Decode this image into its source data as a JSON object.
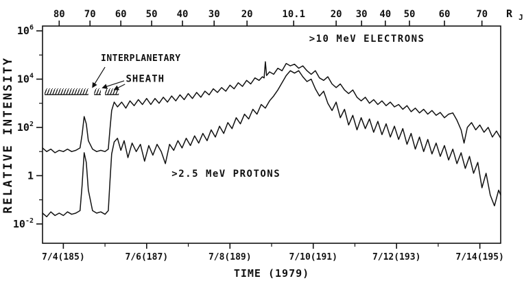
{
  "colors": {
    "ink": "#111111",
    "background": "#ffffff"
  },
  "chart_data": {
    "type": "line",
    "x_axis": {
      "label": "TIME (1979)",
      "range_day": [
        184.5,
        195.5
      ],
      "major_ticks": [
        {
          "day": 185,
          "label": "7/4(185)"
        },
        {
          "day": 187,
          "label": "7/6(187)"
        },
        {
          "day": 189,
          "label": "7/8(189)"
        },
        {
          "day": 191,
          "label": "7/10(191)"
        },
        {
          "day": 193,
          "label": "7/12(193)"
        },
        {
          "day": 195,
          "label": "7/14(195)"
        }
      ],
      "minor_ticks_day": [
        186,
        188,
        190,
        192,
        194
      ]
    },
    "y_axis": {
      "label": "RELATIVE INTENSITY",
      "scale": "log10",
      "range_log10": [
        -2.8,
        6.2
      ],
      "major_ticks": [
        {
          "log10": 6,
          "base": "10",
          "exp": "6"
        },
        {
          "log10": 4,
          "base": "10",
          "exp": "4"
        },
        {
          "log10": 2,
          "base": "10",
          "exp": "2"
        },
        {
          "log10": 0,
          "base": "1",
          "exp": ""
        },
        {
          "log10": -2,
          "base": "10",
          "exp": "-2"
        }
      ],
      "minor_ticks_log10": [
        5,
        3,
        1,
        -1
      ]
    },
    "top_axis": {
      "label_base": "R",
      "label_sub": "J",
      "ticks": [
        {
          "day": 184.9,
          "label": "80"
        },
        {
          "day": 185.64,
          "label": "70"
        },
        {
          "day": 186.38,
          "label": "60"
        },
        {
          "day": 187.12,
          "label": "50"
        },
        {
          "day": 187.86,
          "label": "40"
        },
        {
          "day": 188.62,
          "label": "30"
        },
        {
          "day": 189.41,
          "label": "20"
        },
        {
          "day": 190.53,
          "label": "10.1"
        },
        {
          "day": 191.55,
          "label": "20"
        },
        {
          "day": 192.16,
          "label": "30"
        },
        {
          "day": 192.73,
          "label": "40"
        },
        {
          "day": 193.31,
          "label": "50"
        },
        {
          "day": 194.15,
          "label": "60"
        },
        {
          "day": 195.05,
          "label": "70"
        }
      ]
    },
    "series": [
      {
        "name": ">10 MeV ELECTRONS",
        "points": [
          [
            184.5,
            1.15
          ],
          [
            184.6,
            1.0
          ],
          [
            184.7,
            1.1
          ],
          [
            184.8,
            0.95
          ],
          [
            184.9,
            1.05
          ],
          [
            185.0,
            1.0
          ],
          [
            185.1,
            1.1
          ],
          [
            185.2,
            1.0
          ],
          [
            185.3,
            1.05
          ],
          [
            185.4,
            1.15
          ],
          [
            185.45,
            1.7
          ],
          [
            185.5,
            2.45
          ],
          [
            185.55,
            2.15
          ],
          [
            185.6,
            1.45
          ],
          [
            185.7,
            1.1
          ],
          [
            185.8,
            1.0
          ],
          [
            185.9,
            1.05
          ],
          [
            186.0,
            1.0
          ],
          [
            186.08,
            1.1
          ],
          [
            186.12,
            1.95
          ],
          [
            186.16,
            2.7
          ],
          [
            186.22,
            3.05
          ],
          [
            186.3,
            2.85
          ],
          [
            186.4,
            3.05
          ],
          [
            186.5,
            2.8
          ],
          [
            186.6,
            3.1
          ],
          [
            186.7,
            2.9
          ],
          [
            186.8,
            3.15
          ],
          [
            186.9,
            2.95
          ],
          [
            187.0,
            3.2
          ],
          [
            187.1,
            2.95
          ],
          [
            187.2,
            3.2
          ],
          [
            187.3,
            3.0
          ],
          [
            187.4,
            3.25
          ],
          [
            187.5,
            3.05
          ],
          [
            187.6,
            3.3
          ],
          [
            187.7,
            3.1
          ],
          [
            187.8,
            3.35
          ],
          [
            187.9,
            3.15
          ],
          [
            188.0,
            3.4
          ],
          [
            188.1,
            3.2
          ],
          [
            188.2,
            3.45
          ],
          [
            188.3,
            3.25
          ],
          [
            188.4,
            3.5
          ],
          [
            188.5,
            3.35
          ],
          [
            188.6,
            3.6
          ],
          [
            188.7,
            3.45
          ],
          [
            188.8,
            3.65
          ],
          [
            188.9,
            3.5
          ],
          [
            189.0,
            3.75
          ],
          [
            189.1,
            3.6
          ],
          [
            189.2,
            3.85
          ],
          [
            189.3,
            3.7
          ],
          [
            189.4,
            3.95
          ],
          [
            189.5,
            3.8
          ],
          [
            189.6,
            4.05
          ],
          [
            189.7,
            3.95
          ],
          [
            189.78,
            4.1
          ],
          [
            189.82,
            4.05
          ],
          [
            189.85,
            4.72
          ],
          [
            189.88,
            4.15
          ],
          [
            189.95,
            4.3
          ],
          [
            190.05,
            4.2
          ],
          [
            190.15,
            4.45
          ],
          [
            190.25,
            4.35
          ],
          [
            190.35,
            4.65
          ],
          [
            190.45,
            4.55
          ],
          [
            190.55,
            4.62
          ],
          [
            190.65,
            4.45
          ],
          [
            190.75,
            4.55
          ],
          [
            190.85,
            4.35
          ],
          [
            190.95,
            4.2
          ],
          [
            191.05,
            4.35
          ],
          [
            191.15,
            4.05
          ],
          [
            191.25,
            3.95
          ],
          [
            191.35,
            4.1
          ],
          [
            191.45,
            3.8
          ],
          [
            191.55,
            3.65
          ],
          [
            191.65,
            3.8
          ],
          [
            191.75,
            3.55
          ],
          [
            191.85,
            3.4
          ],
          [
            191.95,
            3.55
          ],
          [
            192.05,
            3.25
          ],
          [
            192.15,
            3.1
          ],
          [
            192.25,
            3.25
          ],
          [
            192.35,
            3.0
          ],
          [
            192.45,
            3.15
          ],
          [
            192.55,
            2.95
          ],
          [
            192.65,
            3.1
          ],
          [
            192.75,
            2.9
          ],
          [
            192.85,
            3.05
          ],
          [
            192.95,
            2.85
          ],
          [
            193.05,
            2.95
          ],
          [
            193.15,
            2.75
          ],
          [
            193.25,
            2.9
          ],
          [
            193.35,
            2.65
          ],
          [
            193.45,
            2.8
          ],
          [
            193.55,
            2.6
          ],
          [
            193.65,
            2.75
          ],
          [
            193.75,
            2.55
          ],
          [
            193.85,
            2.7
          ],
          [
            193.95,
            2.5
          ],
          [
            194.05,
            2.62
          ],
          [
            194.15,
            2.4
          ],
          [
            194.25,
            2.55
          ],
          [
            194.35,
            2.6
          ],
          [
            194.45,
            2.3
          ],
          [
            194.55,
            1.9
          ],
          [
            194.62,
            1.35
          ],
          [
            194.7,
            2.0
          ],
          [
            194.8,
            2.2
          ],
          [
            194.9,
            1.9
          ],
          [
            195.0,
            2.1
          ],
          [
            195.1,
            1.8
          ],
          [
            195.2,
            2.0
          ],
          [
            195.3,
            1.6
          ],
          [
            195.4,
            1.85
          ],
          [
            195.5,
            1.55
          ]
        ]
      },
      {
        "name": ">2.5 MeV PROTONS",
        "points": [
          [
            184.5,
            -1.55
          ],
          [
            184.6,
            -1.7
          ],
          [
            184.7,
            -1.5
          ],
          [
            184.8,
            -1.65
          ],
          [
            184.9,
            -1.55
          ],
          [
            185.0,
            -1.65
          ],
          [
            185.1,
            -1.5
          ],
          [
            185.2,
            -1.6
          ],
          [
            185.3,
            -1.55
          ],
          [
            185.4,
            -1.45
          ],
          [
            185.45,
            -0.4
          ],
          [
            185.5,
            0.95
          ],
          [
            185.55,
            0.55
          ],
          [
            185.6,
            -0.6
          ],
          [
            185.7,
            -1.45
          ],
          [
            185.8,
            -1.55
          ],
          [
            185.9,
            -1.5
          ],
          [
            186.0,
            -1.6
          ],
          [
            186.08,
            -1.45
          ],
          [
            186.12,
            -0.2
          ],
          [
            186.16,
            0.9
          ],
          [
            186.22,
            1.4
          ],
          [
            186.3,
            1.55
          ],
          [
            186.38,
            1.05
          ],
          [
            186.46,
            1.45
          ],
          [
            186.55,
            0.75
          ],
          [
            186.65,
            1.35
          ],
          [
            186.75,
            1.0
          ],
          [
            186.85,
            1.3
          ],
          [
            186.95,
            0.6
          ],
          [
            187.05,
            1.25
          ],
          [
            187.15,
            0.85
          ],
          [
            187.25,
            1.3
          ],
          [
            187.35,
            1.0
          ],
          [
            187.45,
            0.5
          ],
          [
            187.55,
            1.3
          ],
          [
            187.65,
            1.05
          ],
          [
            187.75,
            1.45
          ],
          [
            187.85,
            1.15
          ],
          [
            187.95,
            1.55
          ],
          [
            188.05,
            1.25
          ],
          [
            188.15,
            1.65
          ],
          [
            188.25,
            1.35
          ],
          [
            188.35,
            1.75
          ],
          [
            188.45,
            1.45
          ],
          [
            188.55,
            1.9
          ],
          [
            188.65,
            1.6
          ],
          [
            188.75,
            2.05
          ],
          [
            188.85,
            1.75
          ],
          [
            188.95,
            2.2
          ],
          [
            189.05,
            1.95
          ],
          [
            189.15,
            2.4
          ],
          [
            189.25,
            2.15
          ],
          [
            189.35,
            2.55
          ],
          [
            189.45,
            2.35
          ],
          [
            189.55,
            2.75
          ],
          [
            189.65,
            2.55
          ],
          [
            189.75,
            2.95
          ],
          [
            189.85,
            2.8
          ],
          [
            189.95,
            3.1
          ],
          [
            190.05,
            3.3
          ],
          [
            190.15,
            3.55
          ],
          [
            190.25,
            3.85
          ],
          [
            190.35,
            4.15
          ],
          [
            190.45,
            4.35
          ],
          [
            190.55,
            4.25
          ],
          [
            190.65,
            4.35
          ],
          [
            190.75,
            4.1
          ],
          [
            190.85,
            3.9
          ],
          [
            190.95,
            4.0
          ],
          [
            191.05,
            3.6
          ],
          [
            191.15,
            3.3
          ],
          [
            191.25,
            3.5
          ],
          [
            191.35,
            3.0
          ],
          [
            191.45,
            2.7
          ],
          [
            191.55,
            3.05
          ],
          [
            191.65,
            2.4
          ],
          [
            191.75,
            2.75
          ],
          [
            191.85,
            2.1
          ],
          [
            191.95,
            2.5
          ],
          [
            192.05,
            1.9
          ],
          [
            192.15,
            2.4
          ],
          [
            192.25,
            1.95
          ],
          [
            192.35,
            2.35
          ],
          [
            192.45,
            1.8
          ],
          [
            192.55,
            2.25
          ],
          [
            192.65,
            1.7
          ],
          [
            192.75,
            2.15
          ],
          [
            192.85,
            1.6
          ],
          [
            192.95,
            2.05
          ],
          [
            193.05,
            1.5
          ],
          [
            193.15,
            1.95
          ],
          [
            193.25,
            1.3
          ],
          [
            193.35,
            1.75
          ],
          [
            193.45,
            1.1
          ],
          [
            193.55,
            1.6
          ],
          [
            193.65,
            1.0
          ],
          [
            193.75,
            1.5
          ],
          [
            193.85,
            0.9
          ],
          [
            193.95,
            1.35
          ],
          [
            194.05,
            0.8
          ],
          [
            194.15,
            1.25
          ],
          [
            194.25,
            0.65
          ],
          [
            194.35,
            1.1
          ],
          [
            194.45,
            0.5
          ],
          [
            194.55,
            0.95
          ],
          [
            194.65,
            0.3
          ],
          [
            194.75,
            0.8
          ],
          [
            194.85,
            0.1
          ],
          [
            194.95,
            0.55
          ],
          [
            195.05,
            -0.5
          ],
          [
            195.15,
            0.1
          ],
          [
            195.25,
            -0.8
          ],
          [
            195.35,
            -1.25
          ],
          [
            195.45,
            -0.6
          ],
          [
            195.5,
            -0.8
          ]
        ]
      }
    ],
    "annotations": {
      "electrons_label_pos": {
        "day": 190.9,
        "log10": 5.55
      },
      "protons_label_pos": {
        "day": 187.6,
        "log10": -0.05
      },
      "interplanetary": {
        "text": "INTERPLANETARY",
        "day": 185.9,
        "log10": 4.75
      },
      "sheath": {
        "text": "SHEATH",
        "day": 186.5,
        "log10": 3.88
      },
      "arrows": [
        {
          "from_day": 186.0,
          "from_log10": 4.5,
          "to_day": 185.7,
          "to_log10": 3.66
        },
        {
          "from_day": 186.46,
          "from_log10": 3.93,
          "to_day": 185.94,
          "to_log10": 3.64
        },
        {
          "from_day": 186.48,
          "from_log10": 3.79,
          "to_day": 186.22,
          "to_log10": 3.56
        }
      ],
      "boundary_bar": {
        "segments_day": [
          [
            184.55,
            185.6
          ],
          [
            185.74,
            185.9
          ],
          [
            186.0,
            186.33
          ]
        ],
        "log10_top": 3.62,
        "log10_bottom": 3.36
      }
    }
  }
}
